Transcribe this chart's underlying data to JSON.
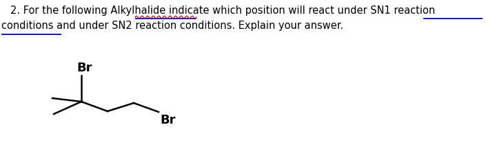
{
  "bg_color": "#ffffff",
  "text_color": "#000000",
  "underline_color": "#0000cc",
  "wavy_color": "#cc0000",
  "line1": "2. For the following Alkylhalide indicate which position will react under SN1 reaction",
  "line2": "conditions and under SN2 reaction conditions. Explain your answer.",
  "fontsize": 10.5,
  "fontweight": "normal",
  "fontfamily": "DejaVu Sans",
  "mol_lw": 1.8,
  "mol_fontsize": 13
}
